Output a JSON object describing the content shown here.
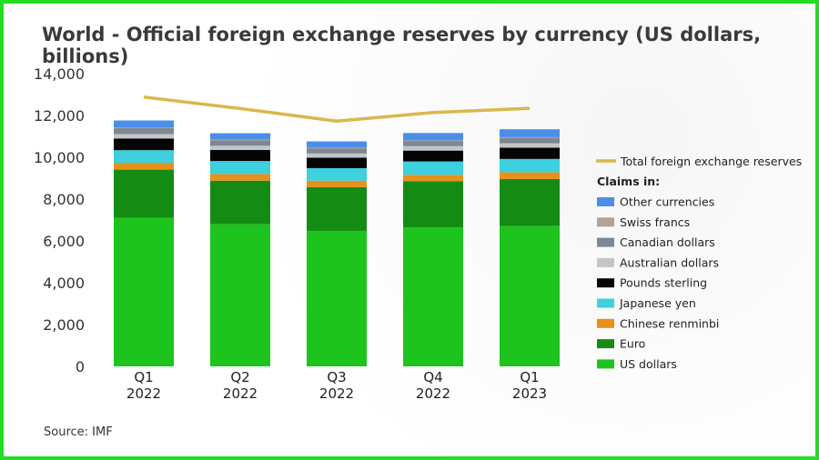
{
  "chart_data": {
    "type": "bar",
    "stacked": true,
    "title": "World - Official foreign exchange reserves by currency (US dollars, billions)",
    "source": "Source: IMF",
    "categories": [
      [
        "Q1",
        "2022"
      ],
      [
        "Q2",
        "2022"
      ],
      [
        "Q3",
        "2022"
      ],
      [
        "Q4",
        "2022"
      ],
      [
        "Q1",
        "2023"
      ]
    ],
    "y_ticks": [
      "0",
      "2,000",
      "4,000",
      "6,000",
      "8,000",
      "10,000",
      "12,000",
      "14,000"
    ],
    "ylim": [
      0,
      14000
    ],
    "legend_heading": "Claims in:",
    "legend_position": "right",
    "grid": false,
    "series": [
      {
        "name": "US dollars",
        "color": "#1dc41d",
        "values": [
          7100,
          6800,
          6480,
          6640,
          6710
        ]
      },
      {
        "name": "Euro",
        "color": "#148c14",
        "values": [
          2310,
          2080,
          2090,
          2220,
          2250
        ]
      },
      {
        "name": "Chinese renminbi",
        "color": "#e8901c",
        "values": [
          330,
          320,
          310,
          300,
          320
        ]
      },
      {
        "name": "Japanese yen",
        "color": "#3dd0de",
        "values": [
          600,
          620,
          600,
          640,
          640
        ]
      },
      {
        "name": "Pounds sterling",
        "color": "#050505",
        "values": [
          560,
          530,
          500,
          520,
          540
        ]
      },
      {
        "name": "Australian dollars",
        "color": "#c3c6c9",
        "values": [
          210,
          200,
          200,
          210,
          210
        ]
      },
      {
        "name": "Canadian dollars",
        "color": "#7d8892",
        "values": [
          280,
          270,
          250,
          250,
          260
        ]
      },
      {
        "name": "Swiss francs",
        "color": "#b3a392",
        "values": [
          30,
          30,
          30,
          30,
          30
        ]
      },
      {
        "name": "Other currencies",
        "color": "#4a8ee8",
        "values": [
          340,
          300,
          300,
          350,
          380
        ]
      }
    ],
    "line": {
      "name": "Total foreign exchange reserves",
      "color": "#d9b84a",
      "values": [
        12880,
        12330,
        11730,
        12140,
        12340
      ]
    }
  }
}
